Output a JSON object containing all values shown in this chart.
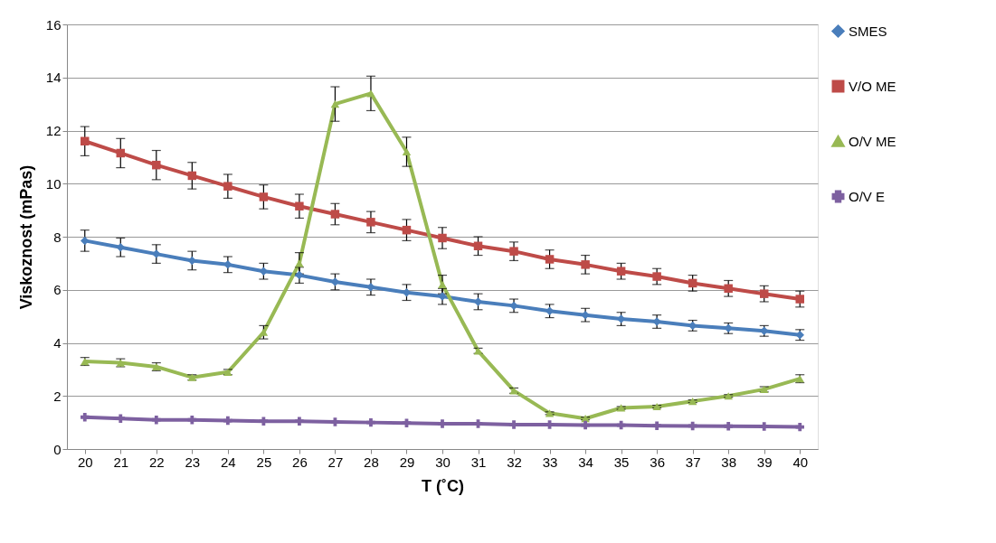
{
  "chart_data": {
    "type": "line",
    "xlabel": "T (˚C)",
    "ylabel": "Viskoznost (mPas)",
    "categories": [
      "20",
      "21",
      "22",
      "23",
      "24",
      "25",
      "26",
      "27",
      "28",
      "29",
      "30",
      "31",
      "32",
      "33",
      "34",
      "35",
      "36",
      "37",
      "38",
      "39",
      "40"
    ],
    "ylim": [
      0,
      16
    ],
    "yticks": [
      0,
      2,
      4,
      6,
      8,
      10,
      12,
      14,
      16
    ],
    "grid": "y",
    "legend": "right",
    "series": [
      {
        "name": "SMES",
        "color": "#4a7ebb",
        "marker": "diamond",
        "values": [
          7.85,
          7.6,
          7.35,
          7.1,
          6.95,
          6.7,
          6.55,
          6.3,
          6.1,
          5.9,
          5.75,
          5.55,
          5.4,
          5.2,
          5.05,
          4.9,
          4.8,
          4.65,
          4.55,
          4.45,
          4.3
        ],
        "errors": [
          0.4,
          0.35,
          0.35,
          0.35,
          0.3,
          0.3,
          0.3,
          0.3,
          0.3,
          0.3,
          0.3,
          0.3,
          0.25,
          0.25,
          0.25,
          0.25,
          0.25,
          0.2,
          0.2,
          0.2,
          0.2
        ]
      },
      {
        "name": "V/O ME",
        "color": "#be4b48",
        "marker": "square",
        "values": [
          11.6,
          11.15,
          10.7,
          10.3,
          9.9,
          9.5,
          9.15,
          8.85,
          8.55,
          8.25,
          7.95,
          7.65,
          7.45,
          7.15,
          6.95,
          6.7,
          6.5,
          6.25,
          6.05,
          5.85,
          5.65
        ],
        "errors": [
          0.55,
          0.55,
          0.55,
          0.5,
          0.45,
          0.45,
          0.45,
          0.4,
          0.4,
          0.4,
          0.4,
          0.35,
          0.35,
          0.35,
          0.35,
          0.3,
          0.3,
          0.3,
          0.3,
          0.3,
          0.3
        ]
      },
      {
        "name": "O/V ME",
        "color": "#98b954",
        "marker": "triangle",
        "values": [
          3.3,
          3.25,
          3.1,
          2.7,
          2.9,
          4.4,
          7.0,
          13.0,
          13.4,
          11.2,
          6.2,
          3.7,
          2.2,
          1.35,
          1.15,
          1.55,
          1.6,
          1.8,
          2.0,
          2.25,
          2.65
        ],
        "errors": [
          0.15,
          0.15,
          0.15,
          0.1,
          0.1,
          0.25,
          0.4,
          0.65,
          0.65,
          0.55,
          0.35,
          0.1,
          0.1,
          0.05,
          0.05,
          0.05,
          0.05,
          0.05,
          0.05,
          0.1,
          0.15
        ]
      },
      {
        "name": "O/V E",
        "color": "#7d60a0",
        "marker": "cross",
        "values": [
          1.2,
          1.15,
          1.1,
          1.1,
          1.07,
          1.05,
          1.05,
          1.02,
          1.0,
          0.98,
          0.95,
          0.95,
          0.92,
          0.92,
          0.9,
          0.9,
          0.88,
          0.87,
          0.86,
          0.85,
          0.83
        ]
      }
    ]
  }
}
